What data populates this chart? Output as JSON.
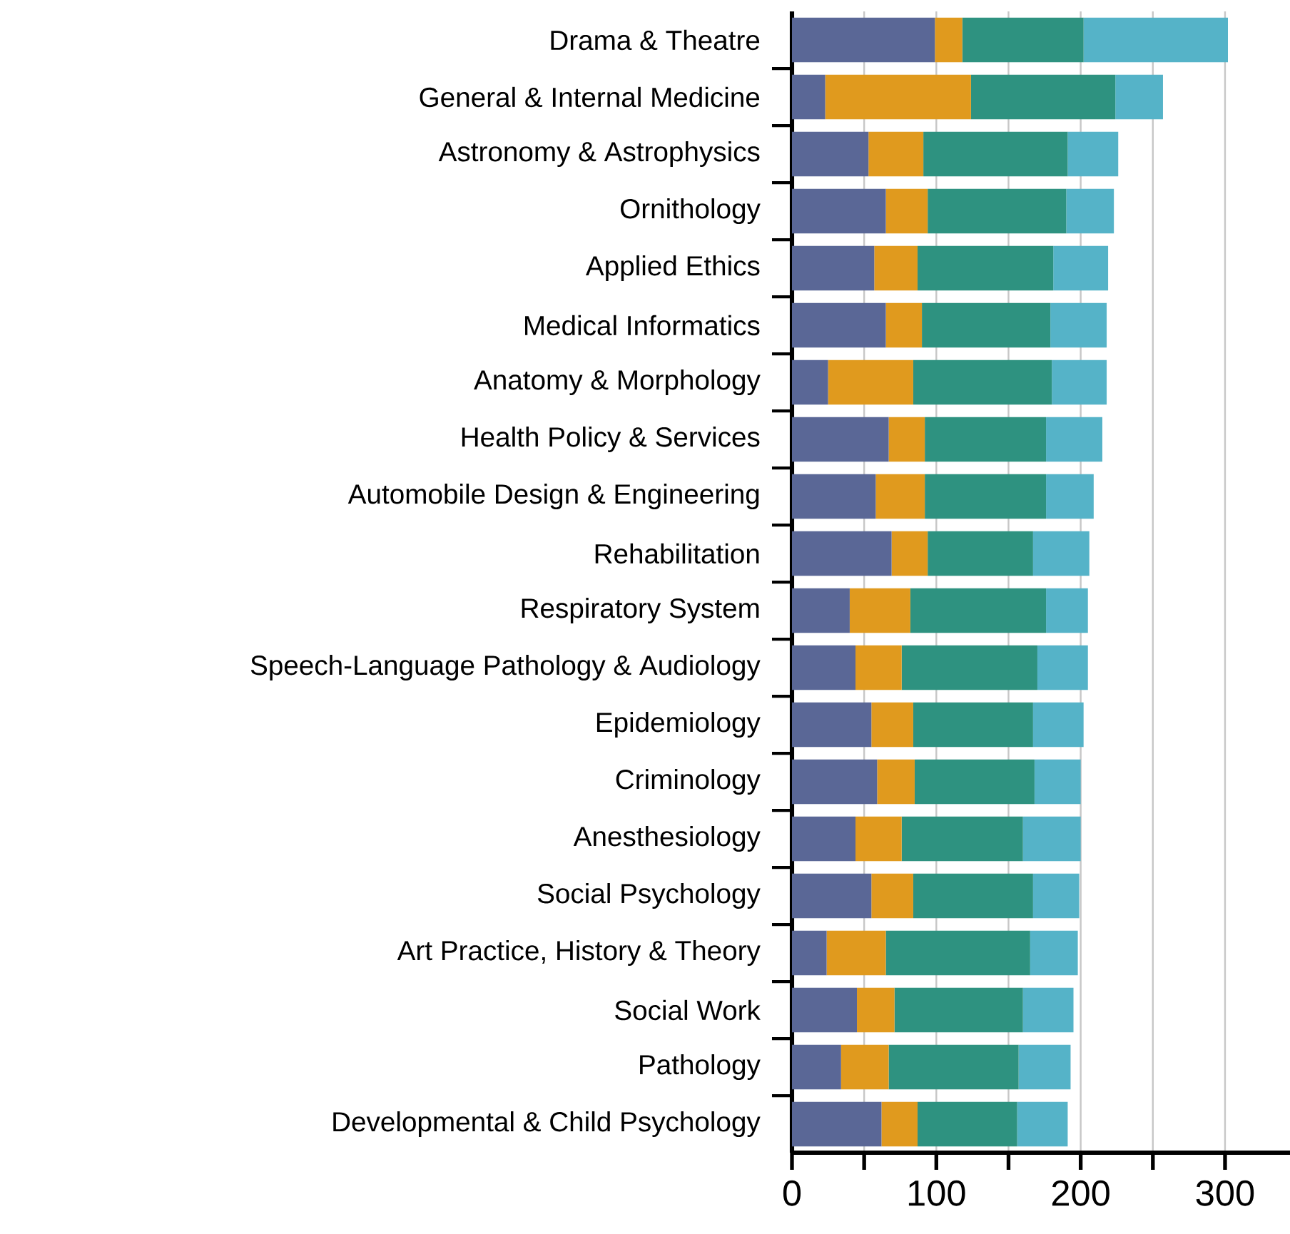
{
  "chart_data": {
    "type": "bar",
    "orientation": "horizontal",
    "stacked": true,
    "grid": "x",
    "categories": [
      "Drama & Theatre",
      "General & Internal Medicine",
      "Astronomy & Astrophysics",
      "Ornithology",
      "Applied Ethics",
      "Medical Informatics",
      "Anatomy & Morphology",
      "Health Policy & Services",
      "Automobile Design & Engineering",
      "Rehabilitation",
      "Respiratory System",
      "Speech-Language Pathology & Audiology",
      "Epidemiology",
      "Criminology",
      "Anesthesiology",
      "Social Psychology",
      "Art Practice, History & Theory",
      "Social Work",
      "Pathology",
      "Developmental & Child Psychology"
    ],
    "series": [
      {
        "color": "#5a6796",
        "values": [
          99,
          23,
          53,
          65,
          57,
          65,
          25,
          67,
          58,
          69,
          40,
          44,
          55,
          59,
          44,
          55,
          24,
          45,
          34,
          62
        ]
      },
      {
        "color": "#e09a1e",
        "values": [
          19,
          101,
          38,
          29,
          30,
          25,
          59,
          25,
          34,
          25,
          42,
          32,
          29,
          26,
          32,
          29,
          41,
          26,
          33,
          25
        ]
      },
      {
        "color": "#2e9280",
        "values": [
          84,
          100,
          100,
          96,
          94,
          89,
          96,
          84,
          84,
          73,
          94,
          94,
          83,
          83,
          84,
          83,
          100,
          89,
          90,
          69
        ]
      },
      {
        "color": "#55b3c8",
        "values": [
          100,
          33,
          35,
          33,
          38,
          39,
          38,
          39,
          33,
          39,
          29,
          35,
          35,
          32,
          40,
          32,
          33,
          35,
          36,
          35
        ]
      }
    ],
    "xlim": [
      0,
      345
    ],
    "xticks": [
      0,
      {
        "value": 50,
        "label": null
      },
      100,
      {
        "value": 150,
        "label": null
      },
      200,
      {
        "value": 250,
        "label": null
      },
      300
    ]
  }
}
